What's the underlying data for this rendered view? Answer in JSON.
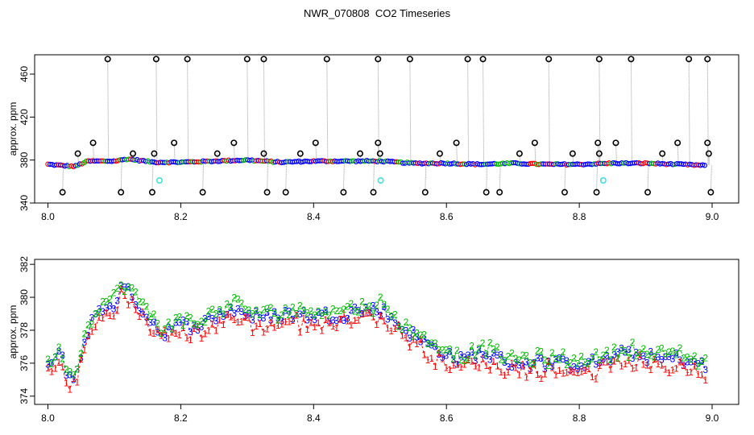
{
  "title": "NWR_070808  CO2 Timeseries",
  "colors": {
    "raw_marker": "#000000",
    "raw_drop_line": "#9a9a9a",
    "flag_marker": "#40e0e0",
    "series_blue": "#0000ff",
    "series_red": "#ff0000",
    "series_green": "#00bb00"
  },
  "chart_data": [
    {
      "type": "scatter",
      "ylabel": "approx. ppm",
      "xlim": [
        7.98,
        9.04
      ],
      "ylim": [
        340,
        478
      ],
      "xticks": [
        "8.0",
        "8.2",
        "8.4",
        "8.6",
        "8.8",
        "9.0"
      ],
      "yticks": [
        "340",
        "380",
        "420",
        "460"
      ],
      "baseline_x": [
        8.0,
        8.04,
        8.06,
        8.1,
        8.12,
        8.16,
        8.2,
        8.25,
        8.3,
        8.35,
        8.4,
        8.45,
        8.5,
        8.55,
        8.6,
        8.65,
        8.7,
        8.75,
        8.8,
        8.85,
        8.9,
        8.95,
        8.99
      ],
      "baseline_y": [
        376,
        374,
        379,
        379,
        381,
        378,
        378,
        379,
        380,
        378,
        379,
        379,
        379,
        377,
        377,
        376,
        377,
        376,
        376,
        377,
        377,
        376,
        375
      ],
      "spikes_high": [
        [
          8.09,
          474
        ],
        [
          8.163,
          474
        ],
        [
          8.21,
          474
        ],
        [
          8.3,
          474
        ],
        [
          8.325,
          474
        ],
        [
          8.42,
          474
        ],
        [
          8.497,
          474
        ],
        [
          8.545,
          474
        ],
        [
          8.632,
          474
        ],
        [
          8.655,
          474
        ],
        [
          8.754,
          474
        ],
        [
          8.83,
          474
        ],
        [
          8.878,
          474
        ],
        [
          8.965,
          474
        ],
        [
          8.993,
          474
        ]
      ],
      "spikes_mid": [
        [
          8.045,
          386
        ],
        [
          8.068,
          396
        ],
        [
          8.128,
          386
        ],
        [
          8.16,
          386
        ],
        [
          8.19,
          396
        ],
        [
          8.255,
          386
        ],
        [
          8.28,
          396
        ],
        [
          8.325,
          386
        ],
        [
          8.38,
          386
        ],
        [
          8.403,
          396
        ],
        [
          8.47,
          386
        ],
        [
          8.497,
          396
        ],
        [
          8.5,
          386
        ],
        [
          8.59,
          386
        ],
        [
          8.615,
          396
        ],
        [
          8.71,
          386
        ],
        [
          8.733,
          396
        ],
        [
          8.79,
          386
        ],
        [
          8.83,
          386
        ],
        [
          8.828,
          396
        ],
        [
          8.855,
          396
        ],
        [
          8.925,
          386
        ],
        [
          8.948,
          396
        ],
        [
          8.995,
          386
        ],
        [
          8.993,
          396
        ]
      ],
      "spikes_low": [
        [
          8.022,
          350
        ],
        [
          8.11,
          350
        ],
        [
          8.157,
          350
        ],
        [
          8.233,
          350
        ],
        [
          8.33,
          350
        ],
        [
          8.358,
          350
        ],
        [
          8.445,
          350
        ],
        [
          8.49,
          350
        ],
        [
          8.568,
          350
        ],
        [
          8.66,
          350
        ],
        [
          8.68,
          350
        ],
        [
          8.778,
          350
        ],
        [
          8.826,
          350
        ],
        [
          8.903,
          350
        ],
        [
          8.998,
          350
        ]
      ],
      "flagged": [
        [
          8.168,
          361
        ],
        [
          8.501,
          361
        ],
        [
          8.836,
          361
        ]
      ]
    },
    {
      "type": "scatter",
      "ylabel": "approx. ppm",
      "xlim": [
        7.98,
        9.04
      ],
      "ylim": [
        373.5,
        382.3
      ],
      "xticks": [
        "8.0",
        "8.2",
        "8.4",
        "8.6",
        "8.8",
        "9.0"
      ],
      "yticks": [
        "374",
        "376",
        "378",
        "380",
        "382"
      ],
      "series": [
        {
          "marker": "3",
          "color": "blue",
          "offset": 0
        },
        {
          "marker": "1",
          "color": "red",
          "offset": -0.6
        },
        {
          "marker": "2",
          "color": "green",
          "offset": 0.35
        }
      ],
      "trend_x": [
        8.0,
        8.01,
        8.02,
        8.03,
        8.04,
        8.05,
        8.06,
        8.07,
        8.08,
        8.09,
        8.1,
        8.11,
        8.12,
        8.13,
        8.14,
        8.15,
        8.16,
        8.17,
        8.18,
        8.2,
        8.22,
        8.24,
        8.26,
        8.28,
        8.3,
        8.32,
        8.34,
        8.36,
        8.38,
        8.4,
        8.42,
        8.44,
        8.46,
        8.48,
        8.5,
        8.52,
        8.54,
        8.56,
        8.57,
        8.58,
        8.6,
        8.62,
        8.64,
        8.66,
        8.68,
        8.7,
        8.72,
        8.74,
        8.76,
        8.78,
        8.8,
        8.82,
        8.84,
        8.86,
        8.88,
        8.9,
        8.92,
        8.94,
        8.96,
        8.98,
        8.99
      ],
      "trend_y": [
        375.8,
        376.2,
        376.5,
        375.3,
        375.0,
        376.5,
        378.0,
        378.8,
        379.2,
        379.5,
        379.6,
        380.5,
        380.3,
        380.0,
        379.3,
        378.8,
        378.4,
        377.8,
        378.0,
        378.3,
        378.3,
        378.5,
        379.0,
        379.3,
        379.0,
        378.7,
        378.8,
        379.0,
        378.9,
        378.9,
        378.9,
        378.9,
        379.2,
        379.2,
        379.3,
        378.6,
        378.0,
        377.4,
        377.2,
        376.9,
        376.6,
        376.1,
        376.5,
        376.6,
        376.2,
        376.0,
        376.0,
        376.0,
        376.0,
        375.9,
        376.0,
        376.0,
        376.2,
        376.5,
        376.6,
        376.4,
        376.2,
        376.3,
        376.2,
        375.9,
        375.8
      ]
    }
  ]
}
